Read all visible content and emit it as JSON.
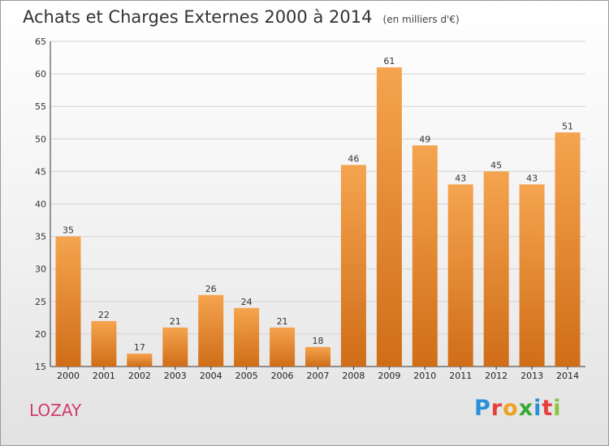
{
  "header": {
    "title": "Achats et Charges Externes 2000 à 2014",
    "unit": "(en milliers d'€)"
  },
  "footer": {
    "commune": "LOZAY",
    "logo_text": "Proxiti"
  },
  "colors": {
    "bar_top": "#f5a44f",
    "bar_bottom": "#d06d18",
    "commune": "#d23b6e",
    "logo": [
      "#2b8fd8",
      "#e83d3d",
      "#f0a020",
      "#3aa835",
      "#2b8fd8",
      "#e83d3d",
      "#8bc53f"
    ]
  },
  "chart_data": {
    "type": "bar",
    "categories": [
      "2000",
      "2001",
      "2002",
      "2003",
      "2004",
      "2005",
      "2006",
      "2007",
      "2008",
      "2009",
      "2010",
      "2011",
      "2012",
      "2013",
      "2014"
    ],
    "values": [
      35,
      22,
      17,
      21,
      26,
      24,
      21,
      18,
      46,
      61,
      49,
      43,
      45,
      43,
      51
    ],
    "ylim": [
      15,
      65
    ],
    "yticks": [
      15,
      20,
      25,
      30,
      35,
      40,
      45,
      50,
      55,
      60,
      65
    ],
    "grid": true
  }
}
